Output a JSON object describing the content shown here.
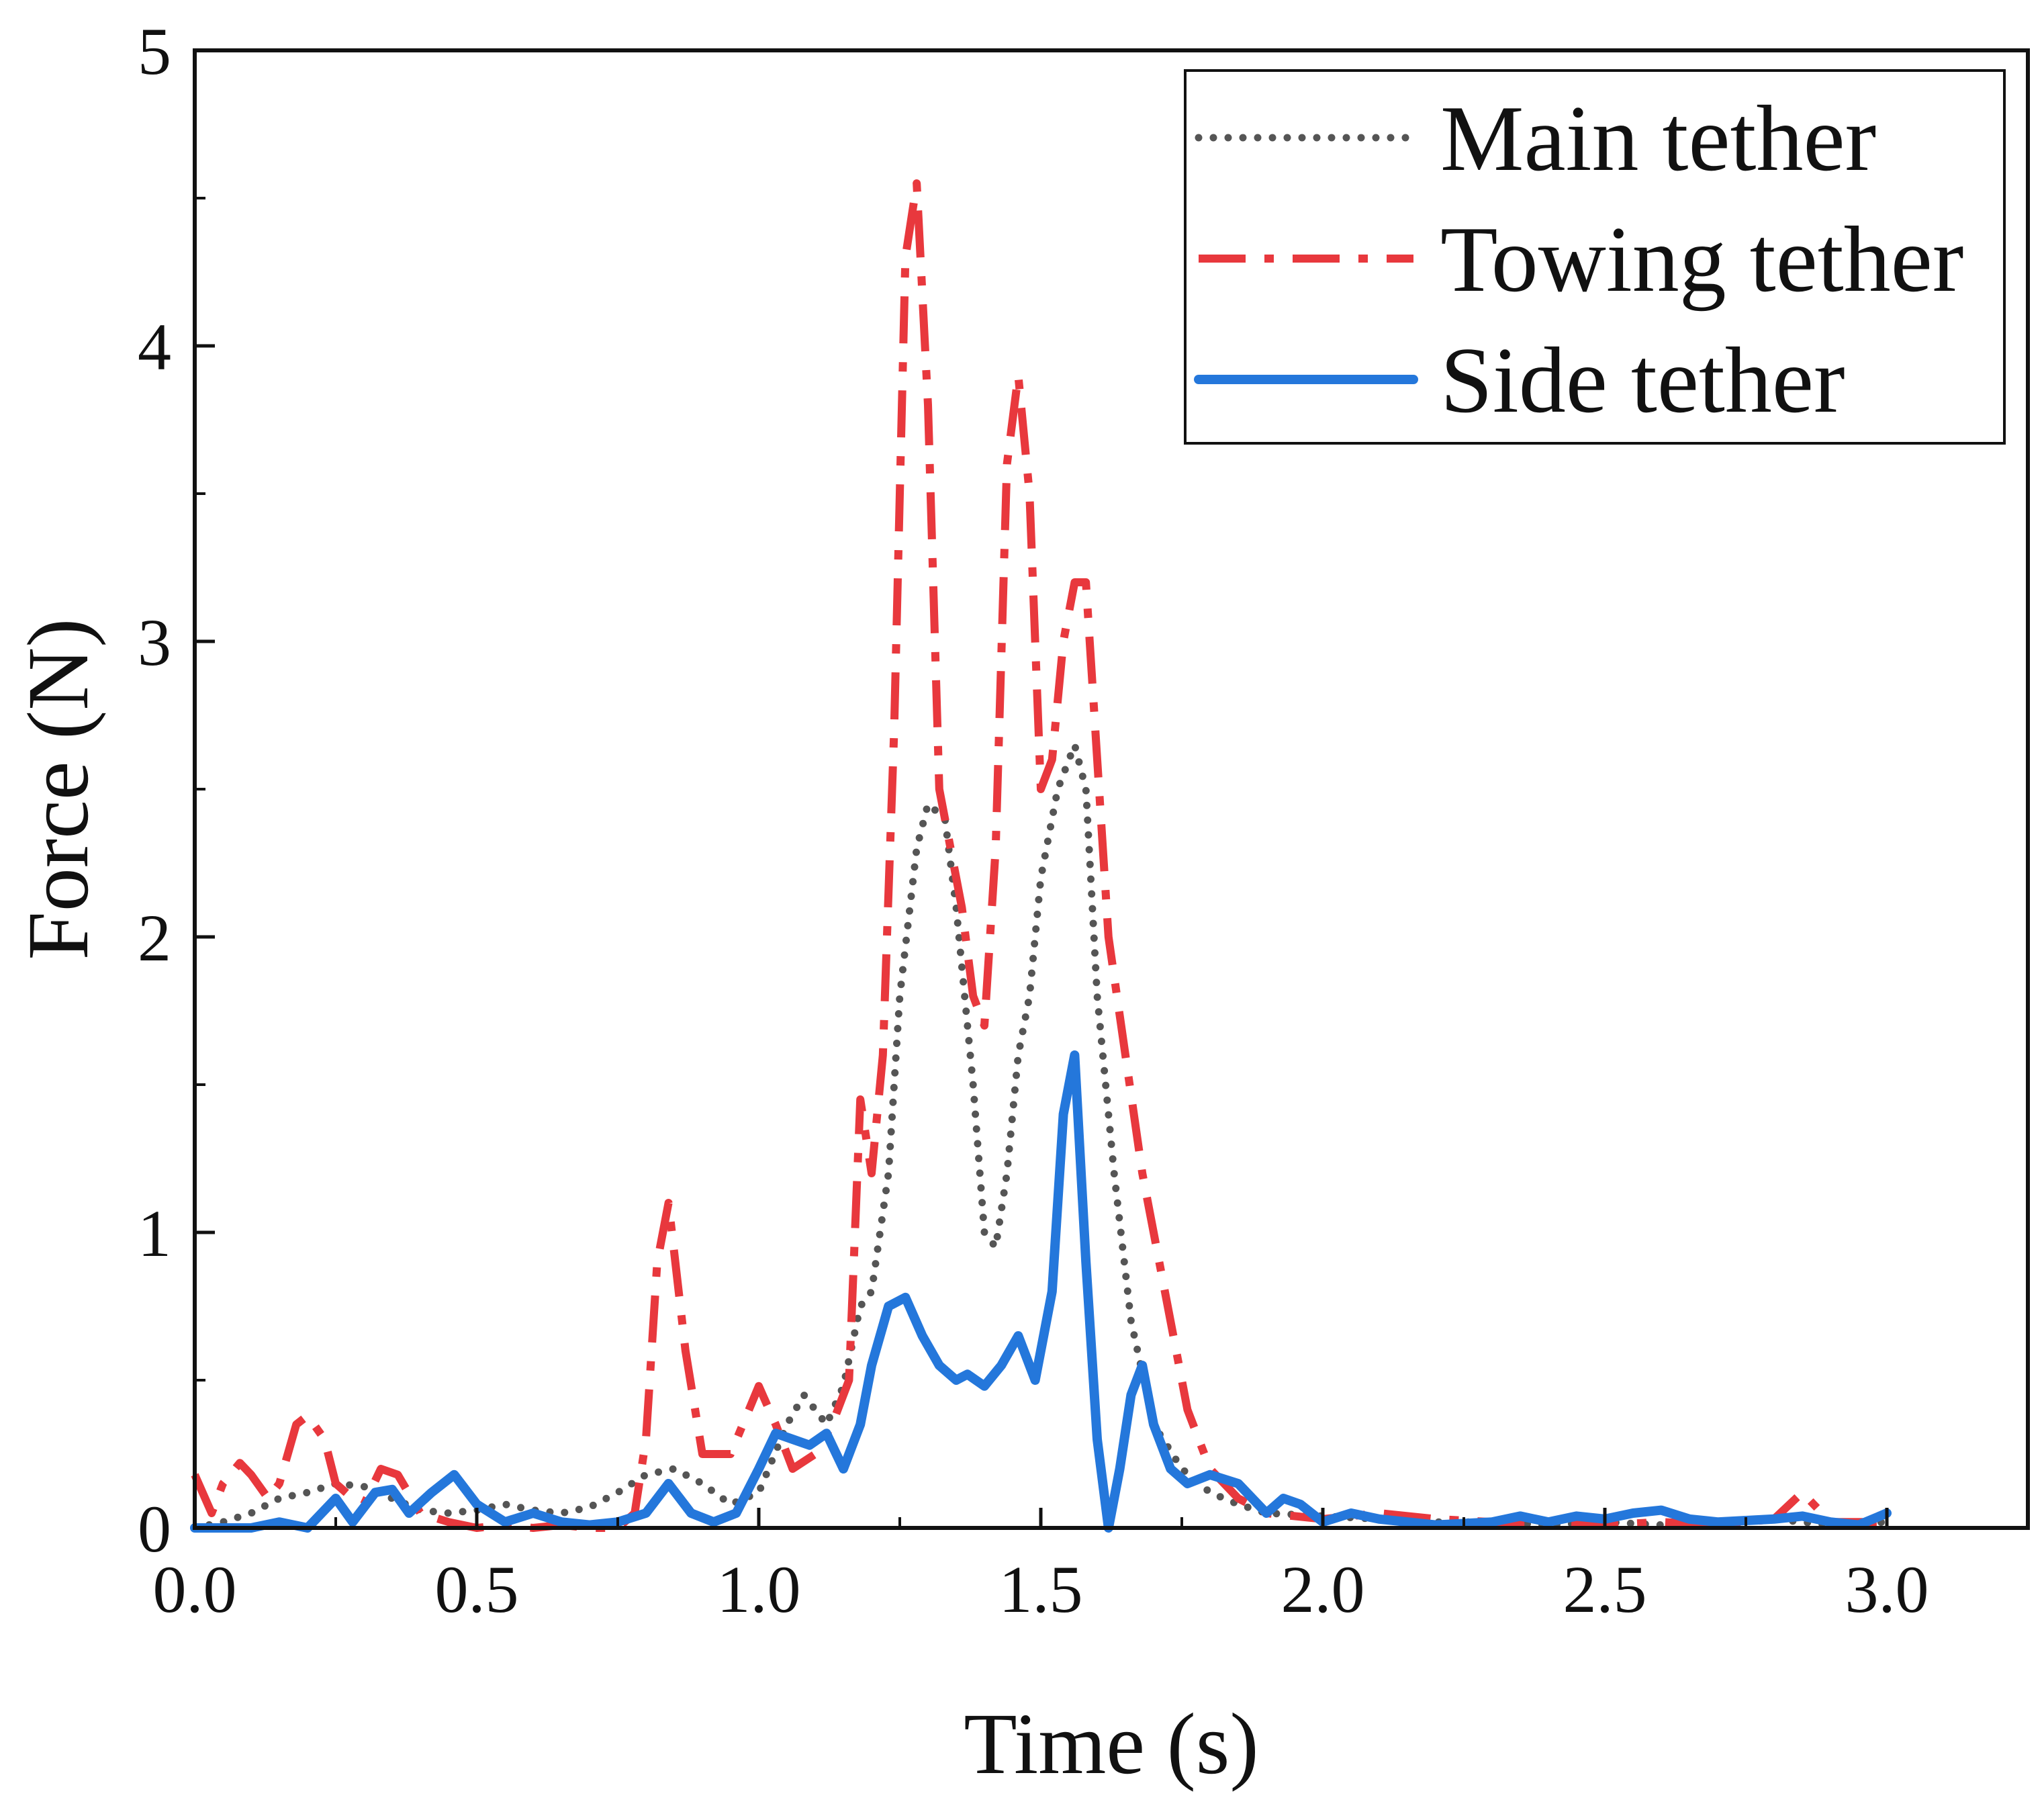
{
  "chart_data": {
    "type": "line",
    "title": "",
    "xlabel": "Time (s)",
    "ylabel": "Force (N)",
    "xlim": [
      0.0,
      3.25
    ],
    "ylim": [
      0,
      5
    ],
    "xticks": [
      0.0,
      0.5,
      1.0,
      1.5,
      2.0,
      2.5,
      3.0
    ],
    "xtick_labels": [
      "0.0",
      "0.5",
      "1.0",
      "1.5",
      "2.0",
      "2.5",
      "3.0"
    ],
    "yticks": [
      0,
      1,
      2,
      3,
      4,
      5
    ],
    "ytick_labels": [
      "0",
      "1",
      "2",
      "3",
      "4",
      "5"
    ],
    "grid": false,
    "legend_position": "top-right",
    "series": [
      {
        "name": "Main tether",
        "style": "dotted",
        "color": "#555555",
        "x": [
          0.0,
          0.05,
          0.1,
          0.15,
          0.2,
          0.25,
          0.3,
          0.35,
          0.4,
          0.45,
          0.5,
          0.55,
          0.6,
          0.65,
          0.7,
          0.75,
          0.8,
          0.85,
          0.9,
          0.95,
          1.0,
          1.05,
          1.08,
          1.12,
          1.15,
          1.18,
          1.2,
          1.23,
          1.25,
          1.28,
          1.3,
          1.33,
          1.35,
          1.38,
          1.4,
          1.42,
          1.44,
          1.46,
          1.48,
          1.5,
          1.53,
          1.56,
          1.58,
          1.6,
          1.63,
          1.66,
          1.7,
          1.75,
          1.8,
          1.85,
          1.9,
          2.0,
          2.1,
          2.2,
          2.3,
          2.4,
          2.5,
          2.6,
          2.7,
          2.8,
          2.9,
          3.0
        ],
        "values": [
          0.0,
          0.02,
          0.05,
          0.1,
          0.12,
          0.15,
          0.14,
          0.1,
          0.06,
          0.05,
          0.06,
          0.08,
          0.06,
          0.05,
          0.07,
          0.12,
          0.18,
          0.2,
          0.15,
          0.08,
          0.12,
          0.35,
          0.45,
          0.35,
          0.48,
          0.75,
          0.8,
          1.2,
          1.8,
          2.3,
          2.45,
          2.4,
          2.1,
          1.5,
          1.0,
          0.95,
          1.2,
          1.6,
          1.8,
          2.2,
          2.5,
          2.65,
          2.5,
          1.8,
          1.2,
          0.7,
          0.35,
          0.2,
          0.12,
          0.08,
          0.05,
          0.04,
          0.03,
          0.02,
          0.02,
          0.01,
          0.02,
          0.01,
          0.02,
          0.03,
          0.01,
          0.02
        ]
      },
      {
        "name": "Towing tether",
        "style": "dash-dot",
        "color": "#e8383d",
        "x": [
          0.0,
          0.03,
          0.05,
          0.08,
          0.1,
          0.13,
          0.15,
          0.18,
          0.2,
          0.23,
          0.25,
          0.28,
          0.3,
          0.33,
          0.36,
          0.4,
          0.45,
          0.5,
          0.55,
          0.6,
          0.65,
          0.7,
          0.75,
          0.78,
          0.8,
          0.82,
          0.84,
          0.87,
          0.9,
          0.95,
          1.0,
          1.03,
          1.06,
          1.1,
          1.13,
          1.16,
          1.18,
          1.2,
          1.22,
          1.24,
          1.26,
          1.28,
          1.3,
          1.32,
          1.34,
          1.36,
          1.38,
          1.4,
          1.42,
          1.44,
          1.46,
          1.48,
          1.5,
          1.52,
          1.54,
          1.56,
          1.58,
          1.6,
          1.62,
          1.65,
          1.68,
          1.72,
          1.76,
          1.8,
          1.85,
          1.9,
          2.0,
          2.1,
          2.2,
          2.3,
          2.4,
          2.5,
          2.6,
          2.7,
          2.75,
          2.8,
          2.85,
          2.9,
          3.0
        ],
        "values": [
          0.18,
          0.05,
          0.15,
          0.22,
          0.18,
          0.1,
          0.15,
          0.35,
          0.38,
          0.3,
          0.15,
          0.1,
          0.08,
          0.2,
          0.18,
          0.05,
          0.02,
          0.0,
          0.01,
          0.0,
          0.01,
          0.0,
          0.0,
          0.05,
          0.3,
          0.9,
          1.1,
          0.6,
          0.25,
          0.25,
          0.48,
          0.35,
          0.2,
          0.25,
          0.35,
          0.5,
          1.45,
          1.2,
          1.6,
          2.7,
          4.3,
          4.55,
          3.8,
          2.5,
          2.3,
          2.1,
          1.8,
          1.7,
          2.3,
          3.6,
          3.9,
          3.5,
          2.5,
          2.6,
          3.0,
          3.2,
          3.2,
          2.6,
          2.0,
          1.6,
          1.2,
          0.8,
          0.4,
          0.2,
          0.1,
          0.05,
          0.03,
          0.05,
          0.03,
          0.02,
          0.02,
          0.01,
          0.02,
          0.01,
          0.02,
          0.03,
          0.12,
          0.02,
          0.02
        ]
      },
      {
        "name": "Side tether",
        "style": "solid",
        "color": "#2477db",
        "x": [
          0.0,
          0.05,
          0.1,
          0.15,
          0.2,
          0.25,
          0.28,
          0.32,
          0.35,
          0.38,
          0.42,
          0.46,
          0.5,
          0.55,
          0.6,
          0.65,
          0.7,
          0.75,
          0.8,
          0.84,
          0.88,
          0.92,
          0.96,
          1.0,
          1.03,
          1.06,
          1.09,
          1.12,
          1.15,
          1.18,
          1.2,
          1.23,
          1.26,
          1.29,
          1.32,
          1.35,
          1.37,
          1.4,
          1.43,
          1.46,
          1.49,
          1.52,
          1.54,
          1.56,
          1.58,
          1.6,
          1.62,
          1.64,
          1.66,
          1.68,
          1.7,
          1.73,
          1.76,
          1.8,
          1.85,
          1.9,
          1.93,
          1.96,
          2.0,
          2.05,
          2.1,
          2.2,
          2.3,
          2.35,
          2.4,
          2.45,
          2.5,
          2.55,
          2.6,
          2.65,
          2.7,
          2.8,
          2.85,
          2.9,
          2.95,
          3.0
        ],
        "values": [
          0.0,
          0.0,
          0.0,
          0.02,
          0.0,
          0.1,
          0.02,
          0.12,
          0.13,
          0.05,
          0.12,
          0.18,
          0.08,
          0.02,
          0.05,
          0.02,
          0.01,
          0.02,
          0.05,
          0.15,
          0.05,
          0.02,
          0.05,
          0.2,
          0.32,
          0.3,
          0.28,
          0.32,
          0.2,
          0.35,
          0.55,
          0.75,
          0.78,
          0.65,
          0.55,
          0.5,
          0.52,
          0.48,
          0.55,
          0.65,
          0.5,
          0.8,
          1.4,
          1.6,
          0.9,
          0.3,
          0.0,
          0.2,
          0.45,
          0.55,
          0.35,
          0.2,
          0.15,
          0.18,
          0.15,
          0.05,
          0.1,
          0.08,
          0.02,
          0.05,
          0.03,
          0.01,
          0.02,
          0.04,
          0.02,
          0.04,
          0.03,
          0.05,
          0.06,
          0.03,
          0.02,
          0.03,
          0.04,
          0.02,
          0.01,
          0.05
        ]
      }
    ]
  }
}
